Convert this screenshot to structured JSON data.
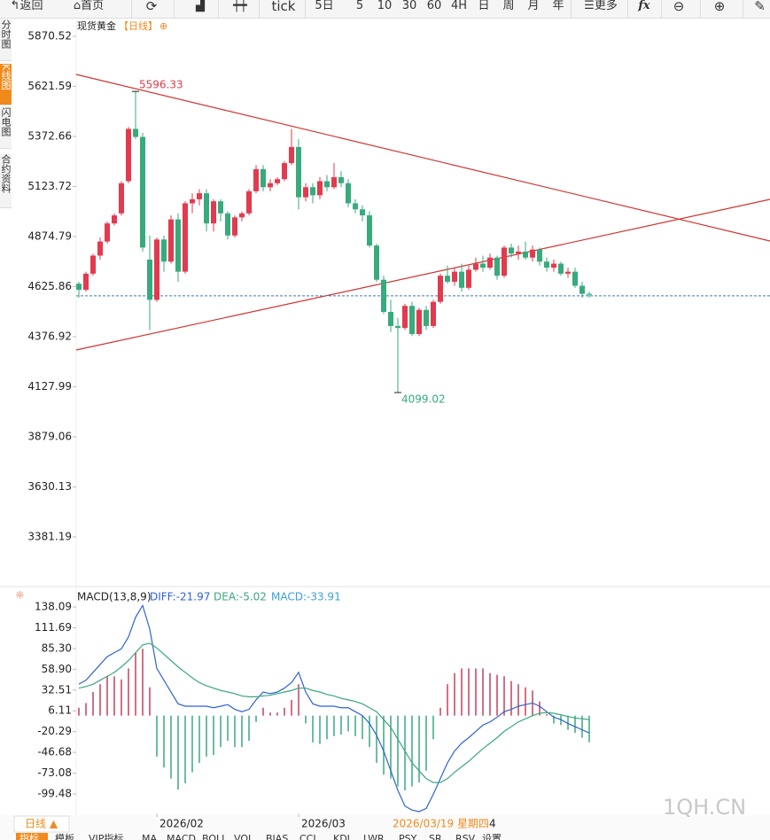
{
  "toolbar": {
    "back": "返回",
    "home": "首页",
    "tick": "tick",
    "periods": [
      "5日",
      "5",
      "10",
      "30",
      "60",
      "4H",
      "日",
      "周",
      "月",
      "年"
    ],
    "more": "更多",
    "fx": "fx"
  },
  "sidebar": [
    "分时图",
    "K线图",
    "闪电图",
    "合约资料"
  ],
  "chart_data": [
    {
      "type": "candlestick",
      "title": "现货黄金",
      "period": "【日线】",
      "open": [
        4640,
        4610,
        4690,
        4780,
        4850,
        4940,
        4990,
        5150,
        5410,
        5370,
        4760,
        4560,
        4860,
        4750,
        4960,
        4700,
        5040,
        5060,
        5090,
        4940,
        5050,
        4990,
        4880,
        4970,
        4990,
        5100,
        5210,
        5120,
        5140,
        5160,
        5240,
        5320,
        5070,
        5120,
        5080,
        5150,
        5120,
        5170,
        5140,
        5040,
        5010,
        4980,
        4830,
        4660,
        4500,
        4430,
        4420,
        4530,
        4390,
        4510,
        4430,
        4550,
        4680,
        4650,
        4700,
        4620,
        4710,
        4740,
        4720,
        4770,
        4680,
        4820,
        4790,
        4800,
        4770,
        4810,
        4750,
        4720,
        4740,
        4690,
        4700,
        4630,
        4590
      ],
      "high": [
        4650,
        4700,
        4790,
        4870,
        4950,
        4990,
        5150,
        5420,
        5596.33,
        5390,
        4880,
        4870,
        4880,
        4980,
        4990,
        5050,
        5090,
        5110,
        5110,
        5060,
        5060,
        5000,
        4980,
        5000,
        5110,
        5230,
        5230,
        5160,
        5170,
        5250,
        5410,
        5360,
        5140,
        5140,
        5170,
        5180,
        5240,
        5200,
        5160,
        5060,
        5030,
        5000,
        4840,
        4680,
        4560,
        4470,
        4540,
        4550,
        4520,
        4530,
        4560,
        4690,
        4730,
        4720,
        4740,
        4730,
        4770,
        4780,
        4790,
        4780,
        4830,
        4840,
        4830,
        4850,
        4830,
        4820,
        4770,
        4760,
        4750,
        4720,
        4720,
        4650,
        4600
      ],
      "low": [
        4570,
        4600,
        4680,
        4760,
        4840,
        4930,
        4980,
        5140,
        5360,
        4800,
        4410,
        4550,
        4700,
        4740,
        4650,
        4690,
        4990,
        5030,
        4900,
        4900,
        4950,
        4860,
        4870,
        4950,
        4980,
        5090,
        5100,
        5100,
        5130,
        5150,
        5230,
        5010,
        5050,
        5040,
        5060,
        5100,
        5110,
        5120,
        5020,
        4990,
        4950,
        4820,
        4650,
        4490,
        4400,
        4099.02,
        4410,
        4380,
        4380,
        4410,
        4420,
        4540,
        4640,
        4630,
        4600,
        4610,
        4700,
        4700,
        4710,
        4660,
        4670,
        4770,
        4760,
        4760,
        4750,
        4730,
        4700,
        4700,
        4680,
        4670,
        4620,
        4570,
        4570
      ],
      "close": [
        4610,
        4690,
        4780,
        4850,
        4940,
        4980,
        5140,
        5410,
        5370,
        4820,
        4560,
        4860,
        4750,
        4960,
        4700,
        5040,
        5060,
        5090,
        4940,
        5050,
        4990,
        4880,
        4970,
        4990,
        5100,
        5210,
        5120,
        5140,
        5160,
        5240,
        5320,
        5070,
        5120,
        5080,
        5150,
        5120,
        5170,
        5140,
        5040,
        5010,
        4980,
        4830,
        4660,
        4500,
        4430,
        4420,
        4530,
        4390,
        4510,
        4430,
        4550,
        4680,
        4650,
        4700,
        4620,
        4710,
        4740,
        4720,
        4770,
        4680,
        4820,
        4790,
        4800,
        4770,
        4810,
        4750,
        4720,
        4740,
        4690,
        4700,
        4630,
        4590,
        4585
      ],
      "up_color": "#e23a4e",
      "down_color": "#37ab7c",
      "last_price": 4580,
      "last_price_color": "#3a78c8",
      "ylim": [
        3143,
        5954
      ],
      "yticks": [
        3381.19,
        3630.13,
        3879.06,
        4127.99,
        4376.92,
        4625.86,
        4874.79,
        5123.72,
        5372.66,
        5621.59,
        5870.52
      ],
      "xticks": [
        {
          "value": 11,
          "label": "2026/02"
        },
        {
          "value": 31,
          "label": "2026/03"
        }
      ]
    },
    {
      "type": "macd",
      "title": "MACD(13,8,9)",
      "legend": [
        "DIFF:-21.97",
        "DEA:-5.02",
        "MACD:-33.91"
      ],
      "series": [
        {
          "name": "DIFF",
          "color": "#2f62d6",
          "values": [
            40,
            45,
            55,
            65,
            75,
            80,
            85,
            100,
            125,
            140,
            110,
            60,
            45,
            30,
            15,
            12,
            12,
            12,
            12,
            10,
            12,
            14,
            8,
            5,
            8,
            20,
            30,
            28,
            30,
            35,
            42,
            55,
            30,
            15,
            12,
            12,
            12,
            10,
            10,
            5,
            0,
            -10,
            -25,
            -45,
            -70,
            -95,
            -115,
            -120,
            -122,
            -118,
            -100,
            -80,
            -60,
            -45,
            -35,
            -28,
            -20,
            -12,
            -8,
            -2,
            5,
            8,
            12,
            14,
            16,
            12,
            5,
            -2,
            -5,
            -10,
            -14,
            -18,
            -21.97
          ]
        },
        {
          "name": "DEA",
          "color": "#3aa87a",
          "values": [
            35,
            37,
            40,
            45,
            50,
            55,
            62,
            70,
            80,
            90,
            92,
            86,
            78,
            70,
            62,
            55,
            48,
            42,
            38,
            35,
            32,
            30,
            28,
            25,
            24,
            24,
            25,
            26,
            28,
            30,
            32,
            35,
            35,
            32,
            30,
            27,
            25,
            22,
            20,
            18,
            15,
            10,
            5,
            -5,
            -15,
            -30,
            -45,
            -60,
            -70,
            -80,
            -85,
            -85,
            -80,
            -72,
            -65,
            -58,
            -50,
            -42,
            -35,
            -28,
            -20,
            -14,
            -8,
            -4,
            0,
            3,
            4,
            3,
            1,
            -1,
            -3,
            -4,
            -5.02
          ]
        },
        {
          "name": "MACD",
          "color": "#3b9fd6",
          "up_color": "#c4405a",
          "down_color": "#3aa880",
          "values": [
            10,
            16,
            30,
            40,
            50,
            50,
            46,
            60,
            80,
            85,
            36,
            -52,
            -66,
            -80,
            -94,
            -86,
            -72,
            -60,
            -52,
            -50,
            -40,
            -32,
            -40,
            -40,
            -32,
            -8,
            10,
            4,
            4,
            10,
            20,
            40,
            -10,
            -34,
            -36,
            -30,
            -26,
            -24,
            -20,
            -26,
            -30,
            -40,
            -60,
            -75,
            -80,
            -90,
            -95,
            -90,
            -85,
            -70,
            -30,
            10,
            40,
            54,
            60,
            60,
            60,
            60,
            54,
            52,
            50,
            44,
            40,
            36,
            32,
            18,
            2,
            -10,
            -12,
            -18,
            -22,
            -28,
            -33.91
          ]
        }
      ],
      "ylim": [
        -124.3,
        157.3
      ],
      "yticks": [
        -99.48,
        -73.08,
        -46.68,
        -20.29,
        6.11,
        32.51,
        {
          "value": 58.9,
          "label": "58.90"
        },
        {
          "value": 85.3,
          "label": "85.30"
        },
        111.69,
        138.09
      ]
    }
  ],
  "footer": {
    "period": "日线 ▲",
    "cursor_date": "2026/03/19 星期四",
    "cursor_extra": "4",
    "watermark": "1QH.CN",
    "tabs": [
      "指标",
      "模板",
      "VIP指标",
      "MA",
      "MACD",
      "BOLL",
      "VOL",
      "BIAS",
      "CCI",
      "KDJ",
      "LWR",
      "PSY",
      "SR",
      "RSV",
      "设置"
    ]
  }
}
